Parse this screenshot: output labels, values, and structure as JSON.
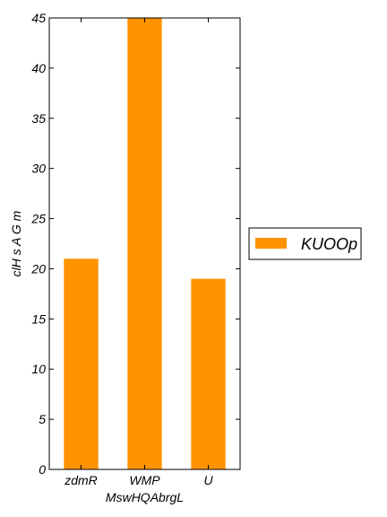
{
  "chart_data": {
    "type": "bar",
    "title": "",
    "xlabel": "MswHQAbrgL",
    "ylabel": "clH s A G m",
    "categories": [
      "zdmR",
      "WMP",
      "U"
    ],
    "series": [
      {
        "name": "KUOOp",
        "values": [
          21,
          45,
          19
        ],
        "color": "#ff9200"
      }
    ],
    "ylim": [
      0,
      45
    ],
    "yticks": [
      0,
      5,
      10,
      15,
      20,
      25,
      30,
      35,
      40,
      45
    ],
    "grid": false,
    "legend_position": "right"
  }
}
